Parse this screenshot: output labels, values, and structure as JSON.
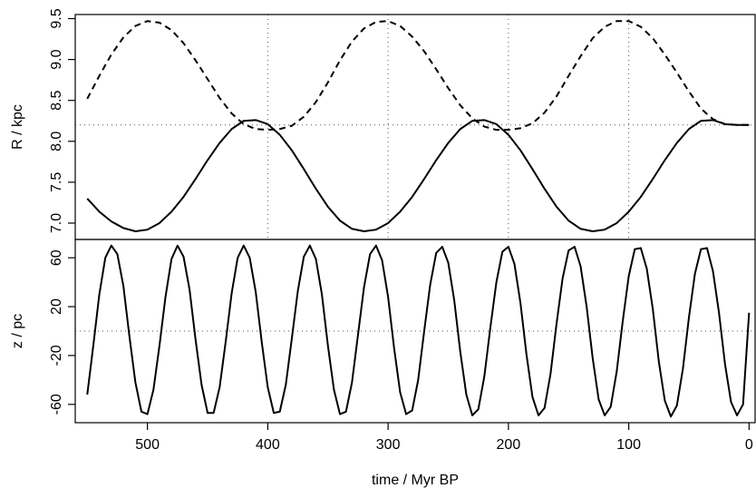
{
  "chart_data": [
    {
      "type": "line",
      "panel": "top",
      "xlabel": "",
      "ylabel": "R / kpc",
      "x_direction": "reversed",
      "xlim": [
        560,
        -5
      ],
      "ylim": [
        6.8,
        9.55
      ],
      "yticks": [
        7.0,
        7.5,
        8.0,
        8.5,
        9.0,
        9.5
      ],
      "ytick_labels": [
        "7.0",
        "7.5",
        "8.0",
        "8.5",
        "9.0",
        "9.5"
      ],
      "grid": false,
      "reference_lines": {
        "horizontal": [
          8.2
        ],
        "vertical": [
          400,
          300,
          200,
          100
        ]
      },
      "series": [
        {
          "style": "solid",
          "x": [
            550,
            540,
            530,
            520,
            510,
            500,
            490,
            480,
            470,
            460,
            450,
            440,
            430,
            420,
            410,
            400,
            390,
            380,
            370,
            360,
            350,
            340,
            330,
            320,
            310,
            300,
            290,
            280,
            270,
            260,
            250,
            240,
            230,
            220,
            210,
            200,
            190,
            180,
            170,
            160,
            150,
            140,
            130,
            120,
            110,
            100,
            90,
            80,
            70,
            60,
            50,
            40,
            30,
            20,
            10,
            0
          ],
          "y": [
            7.3,
            7.14,
            7.02,
            6.94,
            6.9,
            6.92,
            7.0,
            7.14,
            7.32,
            7.54,
            7.77,
            7.98,
            8.15,
            8.25,
            8.26,
            8.21,
            8.08,
            7.89,
            7.66,
            7.42,
            7.2,
            7.03,
            6.93,
            6.9,
            6.92,
            7.0,
            7.14,
            7.32,
            7.54,
            7.77,
            7.98,
            8.15,
            8.25,
            8.26,
            8.21,
            8.08,
            7.89,
            7.66,
            7.42,
            7.2,
            7.03,
            6.93,
            6.9,
            6.92,
            7.0,
            7.14,
            7.32,
            7.54,
            7.77,
            7.98,
            8.15,
            8.25,
            8.26,
            8.21,
            8.2,
            8.2
          ]
        },
        {
          "style": "dashed",
          "x": [
            550,
            540,
            530,
            520,
            510,
            500,
            490,
            480,
            470,
            460,
            450,
            440,
            430,
            420,
            410,
            400,
            390,
            380,
            370,
            360,
            350,
            340,
            330,
            320,
            310,
            300,
            290,
            280,
            270,
            260,
            250,
            240,
            230,
            220,
            210,
            200,
            190,
            180,
            170,
            160,
            150,
            140,
            130,
            120,
            110,
            100,
            90,
            80,
            70,
            60,
            50,
            40,
            30,
            20,
            10,
            0
          ],
          "y": [
            8.52,
            8.8,
            9.06,
            9.27,
            9.41,
            9.47,
            9.45,
            9.36,
            9.2,
            8.99,
            8.76,
            8.53,
            8.34,
            8.21,
            8.15,
            8.14,
            8.15,
            8.19,
            8.3,
            8.48,
            8.72,
            8.99,
            9.22,
            9.38,
            9.46,
            9.47,
            9.41,
            9.28,
            9.1,
            8.88,
            8.65,
            8.44,
            8.28,
            8.18,
            8.14,
            8.14,
            8.16,
            8.22,
            8.35,
            8.55,
            8.8,
            9.04,
            9.26,
            9.4,
            9.47,
            9.47,
            9.4,
            9.26,
            9.06,
            8.84,
            8.61,
            8.4,
            8.27,
            8.21,
            8.2,
            8.2
          ]
        }
      ]
    },
    {
      "type": "line",
      "panel": "bottom",
      "xlabel": "time / Myr BP",
      "ylabel": "z / pc",
      "x_direction": "reversed",
      "xlim": [
        560,
        -5
      ],
      "ylim": [
        -75,
        75
      ],
      "xticks": [
        500,
        400,
        300,
        200,
        100,
        0
      ],
      "xtick_labels": [
        "500",
        "400",
        "300",
        "200",
        "100",
        "0"
      ],
      "yticks": [
        -60,
        -20,
        20,
        60
      ],
      "ytick_labels": [
        "-60",
        "-20",
        "20",
        "60"
      ],
      "grid": false,
      "reference_lines": {
        "horizontal": [
          0
        ]
      },
      "series": [
        {
          "style": "solid",
          "x": [
            550,
            545,
            540,
            535,
            530,
            525,
            520,
            515,
            510,
            505,
            500,
            495,
            490,
            485,
            480,
            475,
            470,
            465,
            460,
            455,
            450,
            445,
            440,
            435,
            430,
            425,
            420,
            415,
            410,
            405,
            400,
            395,
            390,
            385,
            380,
            375,
            370,
            365,
            360,
            355,
            350,
            345,
            340,
            335,
            330,
            325,
            320,
            315,
            310,
            305,
            300,
            295,
            290,
            285,
            280,
            275,
            270,
            265,
            260,
            255,
            250,
            245,
            240,
            235,
            230,
            225,
            220,
            215,
            210,
            205,
            200,
            195,
            190,
            185,
            180,
            175,
            170,
            165,
            160,
            155,
            150,
            145,
            140,
            135,
            130,
            125,
            120,
            115,
            110,
            105,
            100,
            95,
            90,
            85,
            80,
            75,
            70,
            65,
            60,
            55,
            50,
            45,
            40,
            35,
            30,
            25,
            20,
            15,
            10,
            5,
            0
          ],
          "y": [
            -52,
            -12,
            30,
            60,
            70,
            63,
            37,
            -4,
            -42,
            -66,
            -68,
            -48,
            -12,
            28,
            59,
            70,
            61,
            34,
            -7,
            -44,
            -67,
            -67,
            -46,
            -9,
            31,
            60,
            70,
            60,
            32,
            -9,
            -46,
            -67,
            -66,
            -44,
            -6,
            33,
            61,
            70,
            59,
            30,
            -12,
            -48,
            -68,
            -66,
            -42,
            -3,
            36,
            63,
            70,
            58,
            28,
            -14,
            -50,
            -68,
            -65,
            -40,
            0,
            38,
            64,
            69,
            56,
            25,
            -17,
            -52,
            -69,
            -64,
            -37,
            3,
            40,
            65,
            69,
            55,
            23,
            -19,
            -54,
            -69,
            -63,
            -35,
            6,
            43,
            66,
            69,
            53,
            20,
            -22,
            -56,
            -69,
            -62,
            -33,
            8,
            45,
            67,
            68,
            51,
            18,
            -25,
            -57,
            -70,
            -61,
            -31,
            11,
            47,
            67,
            68,
            49,
            15,
            -27,
            -58,
            -69,
            -60,
            15
          ]
        }
      ]
    }
  ]
}
